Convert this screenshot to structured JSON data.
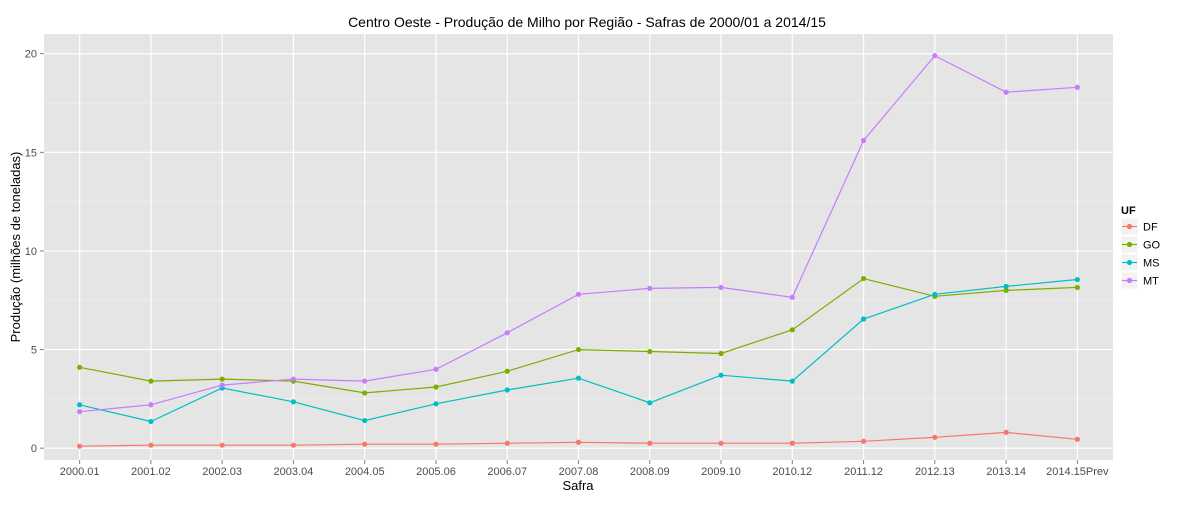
{
  "chart_data": {
    "type": "line",
    "title": "Centro Oeste  - Produção de Milho por Região - Safras de 2000/01 a 2014/15",
    "xlabel": "Safra",
    "ylabel": "Produção (milhões de toneladas)",
    "categories": [
      "2000.01",
      "2001.02",
      "2002.03",
      "2003.04",
      "2004.05",
      "2005.06",
      "2006.07",
      "2007.08",
      "2008.09",
      "2009.10",
      "2010.12",
      "2011.12",
      "2012.13",
      "2013.14",
      "2014.15Prev"
    ],
    "yticks": [
      0,
      5,
      10,
      15,
      20
    ],
    "ylim": [
      -0.6,
      21.0
    ],
    "grid": true,
    "legend": {
      "title": "UF",
      "position": "right"
    },
    "series": [
      {
        "name": "DF",
        "color": "#F8766D",
        "values": [
          0.1,
          0.15,
          0.15,
          0.15,
          0.2,
          0.2,
          0.25,
          0.3,
          0.25,
          0.25,
          0.25,
          0.35,
          0.55,
          0.8,
          0.45
        ]
      },
      {
        "name": "GO",
        "color": "#7CAE00",
        "values": [
          4.1,
          3.4,
          3.5,
          3.4,
          2.8,
          3.1,
          3.9,
          5.0,
          4.9,
          4.8,
          6.0,
          8.6,
          7.7,
          8.0,
          8.15
        ]
      },
      {
        "name": "MS",
        "color": "#00BFC4",
        "values": [
          2.2,
          1.35,
          3.05,
          2.35,
          1.4,
          2.25,
          2.95,
          3.55,
          2.3,
          3.7,
          3.4,
          6.55,
          7.8,
          8.2,
          8.55
        ]
      },
      {
        "name": "MT",
        "color": "#C77CFF",
        "values": [
          1.85,
          2.2,
          3.2,
          3.5,
          3.4,
          4.0,
          5.85,
          7.8,
          8.1,
          8.15,
          7.65,
          15.6,
          19.9,
          18.05,
          18.3
        ]
      }
    ]
  }
}
